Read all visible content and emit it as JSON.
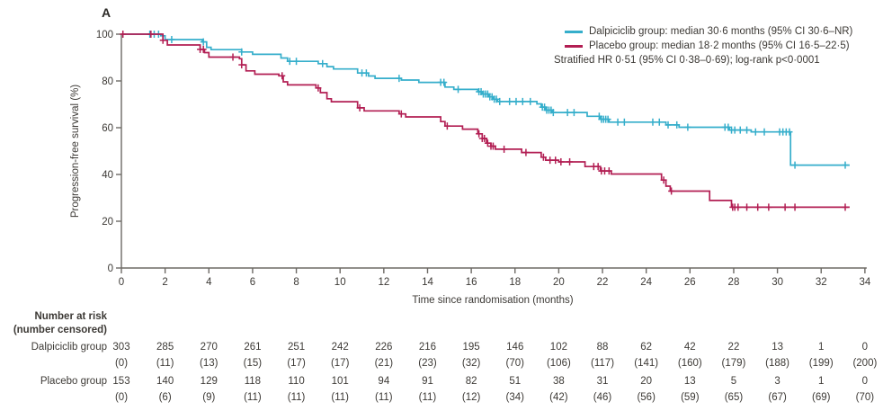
{
  "panel_label": "A",
  "colors": {
    "dalpiciclib": "#35AECB",
    "placebo": "#B21E53",
    "axis": "#6D6A65",
    "text": "#3C3935"
  },
  "legend": {
    "lines": [
      {
        "label": "Dalpiciclib group: median 30·6 months (95% CI 30·6–NR)",
        "series": "dalpiciclib"
      },
      {
        "label": "Placebo group: median 18·2 months (95% CI 16·5–22·5)",
        "series": "placebo"
      },
      {
        "label": "Stratified HR 0·51 (95% CI 0·38–0·69); log-rank p<0·0001",
        "series": ""
      }
    ]
  },
  "chart_data": {
    "type": "line",
    "subtype": "kaplan-meier-step",
    "xlabel": "Time since randomisation (months)",
    "ylabel": "Progression-free survival (%)",
    "xlim": [
      0,
      34
    ],
    "ylim": [
      0,
      100
    ],
    "xticks": [
      0,
      2,
      4,
      6,
      8,
      10,
      12,
      14,
      16,
      18,
      20,
      22,
      24,
      26,
      28,
      30,
      32,
      34
    ],
    "yticks": [
      0,
      20,
      40,
      60,
      80,
      100
    ],
    "grid": false,
    "legend_position": "top-right",
    "series": [
      {
        "name": "Dalpiciclib group",
        "color": "#35AECB",
        "median_months": "30·6",
        "ci95": "30·6–NR",
        "steps": [
          [
            0,
            100
          ],
          [
            1.8,
            99.3
          ],
          [
            2.0,
            97.7
          ],
          [
            3.7,
            96.7
          ],
          [
            3.9,
            94.4
          ],
          [
            4.1,
            93.4
          ],
          [
            5.5,
            92.4
          ],
          [
            6.0,
            91.4
          ],
          [
            7.3,
            89.8
          ],
          [
            7.6,
            88.4
          ],
          [
            9.0,
            87.4
          ],
          [
            9.4,
            86.1
          ],
          [
            9.7,
            85.1
          ],
          [
            10.8,
            83.4
          ],
          [
            11.3,
            82.1
          ],
          [
            11.6,
            81.1
          ],
          [
            12.8,
            80.4
          ],
          [
            13.6,
            79.4
          ],
          [
            14.8,
            77.4
          ],
          [
            15.2,
            76.4
          ],
          [
            16.3,
            75.4
          ],
          [
            16.5,
            74.4
          ],
          [
            16.8,
            73.2
          ],
          [
            17.0,
            72.2
          ],
          [
            17.2,
            71.2
          ],
          [
            19.0,
            70.2
          ],
          [
            19.2,
            68.8
          ],
          [
            19.4,
            67.5
          ],
          [
            19.7,
            66.5
          ],
          [
            21.3,
            64.9
          ],
          [
            21.9,
            63.6
          ],
          [
            22.3,
            62.4
          ],
          [
            24.9,
            61.2
          ],
          [
            25.5,
            60.2
          ],
          [
            27.8,
            59.0
          ],
          [
            28.8,
            58.2
          ],
          [
            30.6,
            44.0
          ],
          [
            33.3,
            44.0
          ]
        ],
        "censor_times": [
          1.3,
          1.5,
          1.7,
          2.3,
          3.75,
          5.5,
          7.7,
          8.0,
          9.2,
          11.0,
          11.2,
          12.7,
          14.6,
          14.75,
          15.4,
          16.35,
          16.45,
          16.55,
          16.65,
          16.75,
          16.85,
          16.95,
          17.05,
          17.15,
          17.3,
          17.75,
          18.05,
          18.35,
          18.7,
          19.25,
          19.35,
          19.45,
          19.55,
          19.65,
          19.75,
          20.4,
          20.7,
          21.85,
          21.95,
          22.05,
          22.15,
          22.25,
          22.7,
          23.0,
          24.3,
          24.6,
          25.0,
          25.4,
          25.9,
          27.6,
          27.75,
          27.9,
          28.05,
          28.3,
          28.6,
          29.0,
          29.4,
          30.1,
          30.25,
          30.4,
          30.55,
          30.8,
          33.1
        ]
      },
      {
        "name": "Placebo group",
        "color": "#B21E53",
        "median_months": "18·2",
        "ci95": "16·5–22·5",
        "steps": [
          [
            0,
            100
          ],
          [
            1.9,
            97.4
          ],
          [
            2.1,
            95.4
          ],
          [
            3.6,
            93.5
          ],
          [
            3.8,
            92.1
          ],
          [
            4.0,
            90.2
          ],
          [
            5.4,
            89.5
          ],
          [
            5.5,
            86.9
          ],
          [
            5.7,
            84.3
          ],
          [
            6.1,
            82.9
          ],
          [
            7.2,
            82.2
          ],
          [
            7.4,
            79.6
          ],
          [
            7.6,
            78.3
          ],
          [
            8.9,
            77.0
          ],
          [
            9.1,
            75.0
          ],
          [
            9.4,
            72.4
          ],
          [
            9.6,
            71.1
          ],
          [
            10.8,
            68.5
          ],
          [
            11.1,
            67.2
          ],
          [
            12.7,
            65.9
          ],
          [
            13.0,
            64.6
          ],
          [
            14.6,
            62.6
          ],
          [
            14.8,
            60.7
          ],
          [
            15.6,
            59.4
          ],
          [
            16.3,
            57.4
          ],
          [
            16.5,
            55.4
          ],
          [
            16.7,
            53.4
          ],
          [
            16.9,
            52.1
          ],
          [
            17.1,
            50.8
          ],
          [
            18.3,
            49.4
          ],
          [
            19.2,
            47.4
          ],
          [
            19.4,
            46.1
          ],
          [
            20.0,
            45.4
          ],
          [
            21.2,
            43.4
          ],
          [
            21.9,
            41.5
          ],
          [
            22.4,
            40.2
          ],
          [
            24.7,
            37.6
          ],
          [
            24.9,
            35.0
          ],
          [
            25.1,
            32.9
          ],
          [
            26.9,
            28.9
          ],
          [
            27.9,
            26.0
          ],
          [
            33.3,
            26.0
          ]
        ],
        "censor_times": [
          0.07,
          1.35,
          1.9,
          3.6,
          3.75,
          5.1,
          5.5,
          7.35,
          9.0,
          10.9,
          12.8,
          14.9,
          16.35,
          16.5,
          16.6,
          16.75,
          16.9,
          17.0,
          17.5,
          18.5,
          19.3,
          19.6,
          19.85,
          20.1,
          20.5,
          21.6,
          21.8,
          21.95,
          22.1,
          22.3,
          24.8,
          25.15,
          27.95,
          28.05,
          28.2,
          28.6,
          29.1,
          29.6,
          30.35,
          30.8,
          33.1
        ]
      }
    ],
    "annotations": [
      "Stratified HR 0·51 (95% CI 0·38–0·69); log-rank p<0·0001"
    ]
  },
  "risk_table": {
    "header_line1": "Number at risk",
    "header_line2": "(number censored)",
    "times": [
      0,
      2,
      4,
      6,
      8,
      10,
      12,
      14,
      16,
      18,
      20,
      22,
      24,
      26,
      28,
      30,
      32,
      34
    ],
    "rows": [
      {
        "label": "Dalpiciclib group",
        "at_risk": [
          303,
          285,
          270,
          261,
          251,
          242,
          226,
          216,
          195,
          146,
          102,
          88,
          62,
          42,
          22,
          13,
          1,
          0
        ],
        "censored": [
          0,
          11,
          13,
          15,
          17,
          17,
          21,
          23,
          32,
          70,
          106,
          117,
          141,
          160,
          179,
          188,
          199,
          200
        ]
      },
      {
        "label": "Placebo group",
        "at_risk": [
          153,
          140,
          129,
          118,
          110,
          101,
          94,
          91,
          82,
          51,
          38,
          31,
          20,
          13,
          5,
          3,
          1,
          0
        ],
        "censored": [
          0,
          6,
          9,
          11,
          11,
          11,
          11,
          11,
          12,
          34,
          42,
          46,
          56,
          59,
          65,
          67,
          69,
          70
        ]
      }
    ]
  }
}
